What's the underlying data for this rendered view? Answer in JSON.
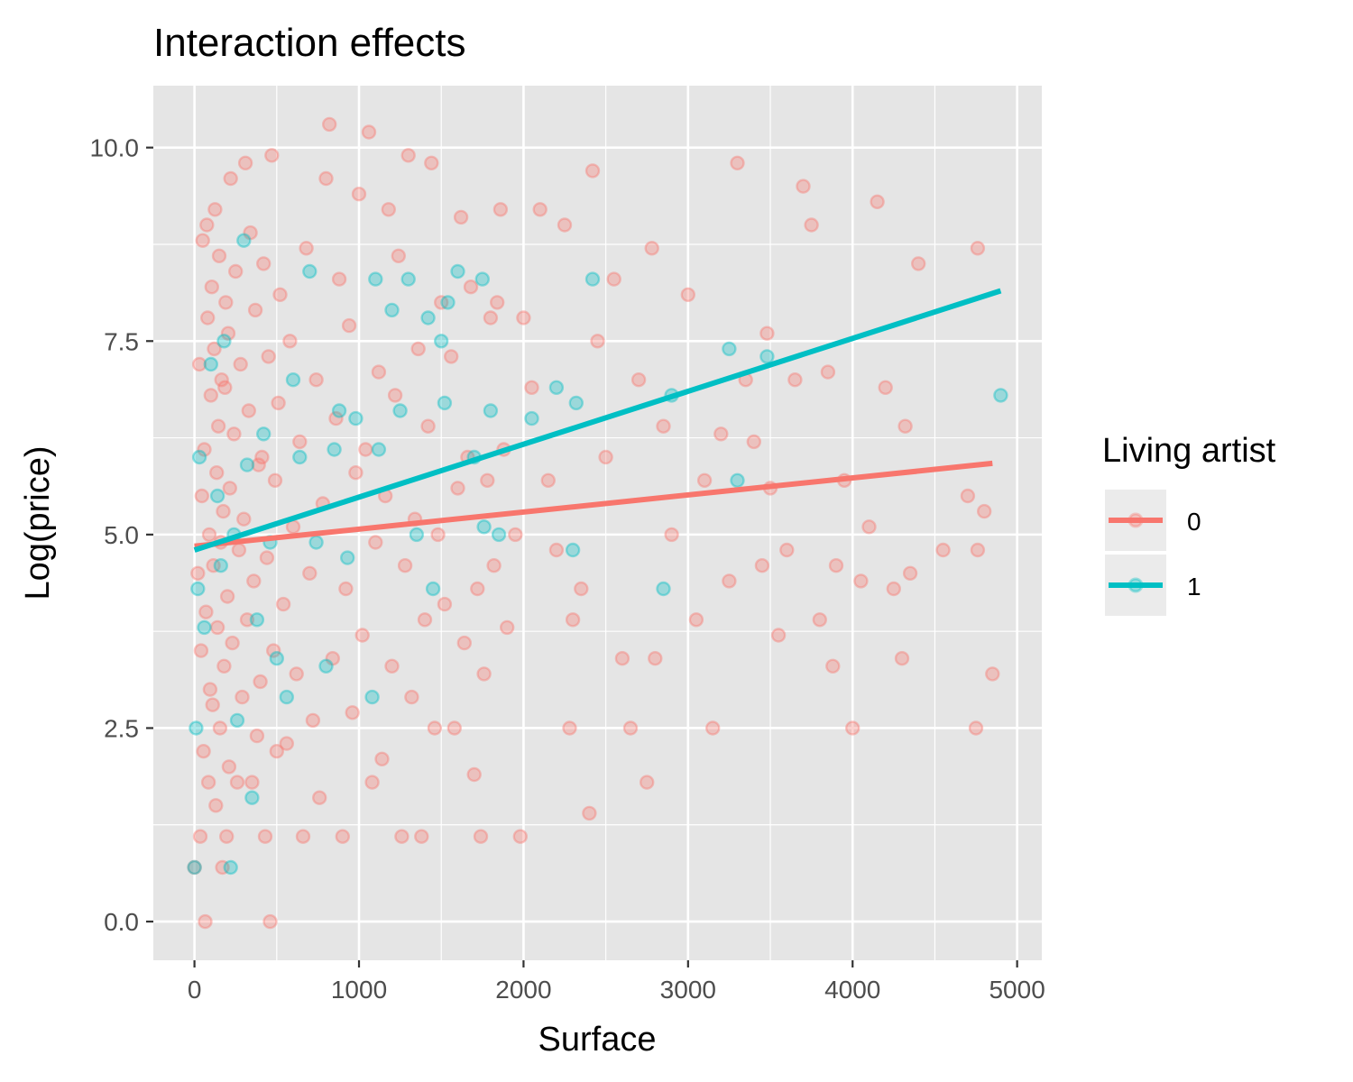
{
  "chart_data": {
    "type": "scatter",
    "title": "Interaction effects",
    "xlabel": "Surface",
    "ylabel": "Log(price)",
    "xlim": [
      -250,
      5150
    ],
    "ylim": [
      -0.5,
      10.8
    ],
    "x_ticks": [
      0,
      1000,
      2000,
      3000,
      4000,
      5000
    ],
    "x_tick_labels": [
      "0",
      "1000",
      "2000",
      "3000",
      "4000",
      "5000"
    ],
    "y_ticks": [
      0,
      2.5,
      5,
      7.5,
      10
    ],
    "y_tick_labels": [
      "0.0",
      "2.5",
      "5.0",
      "7.5",
      "10.0"
    ],
    "grid": true,
    "legend": {
      "title": "Living artist",
      "placement": "right",
      "entries": [
        "0",
        "1"
      ]
    },
    "colors": {
      "series_0": "#F8766D",
      "series_1": "#00BFC4",
      "panel_background": "#E5E5E5",
      "gridline": "#FFFFFF"
    },
    "series": [
      {
        "name": "0",
        "color": "#F8766D",
        "fit_line": {
          "x": [
            0,
            4850
          ],
          "y": [
            4.85,
            5.92
          ]
        },
        "points": [
          [
            0,
            0.7
          ],
          [
            20,
            4.5
          ],
          [
            30,
            7.2
          ],
          [
            35,
            1.1
          ],
          [
            40,
            3.5
          ],
          [
            45,
            5.5
          ],
          [
            50,
            8.8
          ],
          [
            55,
            2.2
          ],
          [
            60,
            6.1
          ],
          [
            65,
            0.0
          ],
          [
            70,
            4.0
          ],
          [
            75,
            9.0
          ],
          [
            80,
            7.8
          ],
          [
            85,
            1.8
          ],
          [
            90,
            5.0
          ],
          [
            95,
            3.0
          ],
          [
            100,
            6.8
          ],
          [
            105,
            8.2
          ],
          [
            110,
            2.8
          ],
          [
            115,
            4.6
          ],
          [
            120,
            7.4
          ],
          [
            125,
            9.2
          ],
          [
            130,
            1.5
          ],
          [
            135,
            5.8
          ],
          [
            140,
            3.8
          ],
          [
            145,
            6.4
          ],
          [
            150,
            8.6
          ],
          [
            155,
            2.5
          ],
          [
            160,
            4.9
          ],
          [
            165,
            7.0
          ],
          [
            170,
            0.7
          ],
          [
            175,
            5.3
          ],
          [
            180,
            3.3
          ],
          [
            185,
            6.9
          ],
          [
            190,
            8.0
          ],
          [
            195,
            1.1
          ],
          [
            200,
            4.2
          ],
          [
            205,
            7.6
          ],
          [
            210,
            2.0
          ],
          [
            215,
            5.6
          ],
          [
            220,
            9.6
          ],
          [
            230,
            3.6
          ],
          [
            240,
            6.3
          ],
          [
            250,
            8.4
          ],
          [
            260,
            1.8
          ],
          [
            270,
            4.8
          ],
          [
            280,
            7.2
          ],
          [
            290,
            2.9
          ],
          [
            300,
            5.2
          ],
          [
            310,
            9.8
          ],
          [
            320,
            3.9
          ],
          [
            330,
            6.6
          ],
          [
            340,
            8.9
          ],
          [
            350,
            1.8
          ],
          [
            360,
            4.4
          ],
          [
            370,
            7.9
          ],
          [
            380,
            2.4
          ],
          [
            390,
            5.9
          ],
          [
            400,
            3.1
          ],
          [
            410,
            6.0
          ],
          [
            420,
            8.5
          ],
          [
            430,
            1.1
          ],
          [
            440,
            4.7
          ],
          [
            450,
            7.3
          ],
          [
            460,
            0.0
          ],
          [
            470,
            9.9
          ],
          [
            480,
            3.5
          ],
          [
            490,
            5.7
          ],
          [
            500,
            2.2
          ],
          [
            510,
            6.7
          ],
          [
            520,
            8.1
          ],
          [
            540,
            4.1
          ],
          [
            560,
            2.3
          ],
          [
            580,
            7.5
          ],
          [
            600,
            5.1
          ],
          [
            620,
            3.2
          ],
          [
            640,
            6.2
          ],
          [
            660,
            1.1
          ],
          [
            680,
            8.7
          ],
          [
            700,
            4.5
          ],
          [
            720,
            2.6
          ],
          [
            740,
            7.0
          ],
          [
            760,
            1.6
          ],
          [
            780,
            5.4
          ],
          [
            800,
            9.6
          ],
          [
            820,
            10.3
          ],
          [
            840,
            3.4
          ],
          [
            860,
            6.5
          ],
          [
            880,
            8.3
          ],
          [
            900,
            1.1
          ],
          [
            920,
            4.3
          ],
          [
            940,
            7.7
          ],
          [
            960,
            2.7
          ],
          [
            980,
            5.8
          ],
          [
            1000,
            9.4
          ],
          [
            1020,
            3.7
          ],
          [
            1040,
            6.1
          ],
          [
            1060,
            10.2
          ],
          [
            1080,
            1.8
          ],
          [
            1100,
            4.9
          ],
          [
            1120,
            7.1
          ],
          [
            1140,
            2.1
          ],
          [
            1160,
            5.5
          ],
          [
            1180,
            9.2
          ],
          [
            1200,
            3.3
          ],
          [
            1220,
            6.8
          ],
          [
            1240,
            8.6
          ],
          [
            1260,
            1.1
          ],
          [
            1280,
            4.6
          ],
          [
            1300,
            9.9
          ],
          [
            1320,
            2.9
          ],
          [
            1340,
            5.2
          ],
          [
            1360,
            7.4
          ],
          [
            1380,
            1.1
          ],
          [
            1400,
            3.9
          ],
          [
            1420,
            6.4
          ],
          [
            1440,
            9.8
          ],
          [
            1460,
            2.5
          ],
          [
            1480,
            5.0
          ],
          [
            1500,
            8.0
          ],
          [
            1520,
            4.1
          ],
          [
            1560,
            7.3
          ],
          [
            1580,
            2.5
          ],
          [
            1600,
            5.6
          ],
          [
            1620,
            9.1
          ],
          [
            1640,
            3.6
          ],
          [
            1660,
            6.0
          ],
          [
            1680,
            8.2
          ],
          [
            1700,
            1.9
          ],
          [
            1720,
            4.3
          ],
          [
            1740,
            1.1
          ],
          [
            1760,
            3.2
          ],
          [
            1780,
            5.7
          ],
          [
            1800,
            7.8
          ],
          [
            1820,
            4.6
          ],
          [
            1840,
            8.0
          ],
          [
            1860,
            9.2
          ],
          [
            1880,
            6.1
          ],
          [
            1900,
            3.8
          ],
          [
            1950,
            5.0
          ],
          [
            1980,
            1.1
          ],
          [
            2000,
            7.8
          ],
          [
            2050,
            6.9
          ],
          [
            2100,
            9.2
          ],
          [
            2150,
            5.7
          ],
          [
            2200,
            4.8
          ],
          [
            2250,
            9.0
          ],
          [
            2280,
            2.5
          ],
          [
            2300,
            3.9
          ],
          [
            2350,
            4.3
          ],
          [
            2400,
            1.4
          ],
          [
            2420,
            9.7
          ],
          [
            2450,
            7.5
          ],
          [
            2500,
            6.0
          ],
          [
            2550,
            8.3
          ],
          [
            2600,
            3.4
          ],
          [
            2650,
            2.5
          ],
          [
            2700,
            7.0
          ],
          [
            2750,
            1.8
          ],
          [
            2780,
            8.7
          ],
          [
            2800,
            3.4
          ],
          [
            2850,
            6.4
          ],
          [
            2900,
            5.0
          ],
          [
            3000,
            8.1
          ],
          [
            3050,
            3.9
          ],
          [
            3100,
            5.7
          ],
          [
            3150,
            2.5
          ],
          [
            3200,
            6.3
          ],
          [
            3250,
            4.4
          ],
          [
            3300,
            9.8
          ],
          [
            3350,
            7.0
          ],
          [
            3400,
            6.2
          ],
          [
            3450,
            4.6
          ],
          [
            3480,
            7.6
          ],
          [
            3500,
            5.6
          ],
          [
            3550,
            3.7
          ],
          [
            3600,
            4.8
          ],
          [
            3650,
            7.0
          ],
          [
            3700,
            9.5
          ],
          [
            3750,
            9.0
          ],
          [
            3800,
            3.9
          ],
          [
            3850,
            7.1
          ],
          [
            3880,
            3.3
          ],
          [
            3900,
            4.6
          ],
          [
            3950,
            5.7
          ],
          [
            4000,
            2.5
          ],
          [
            4050,
            4.4
          ],
          [
            4100,
            5.1
          ],
          [
            4150,
            9.3
          ],
          [
            4200,
            6.9
          ],
          [
            4250,
            4.3
          ],
          [
            4300,
            3.4
          ],
          [
            4320,
            6.4
          ],
          [
            4350,
            4.5
          ],
          [
            4400,
            8.5
          ],
          [
            4550,
            4.8
          ],
          [
            4700,
            5.5
          ],
          [
            4750,
            2.5
          ],
          [
            4760,
            4.8
          ],
          [
            4760,
            8.7
          ],
          [
            4800,
            5.3
          ],
          [
            4850,
            3.2
          ]
        ]
      },
      {
        "name": "1",
        "color": "#00BFC4",
        "fit_line": {
          "x": [
            0,
            4900
          ],
          "y": [
            4.8,
            8.15
          ]
        },
        "points": [
          [
            0,
            0.7
          ],
          [
            10,
            2.5
          ],
          [
            20,
            4.3
          ],
          [
            30,
            6.0
          ],
          [
            60,
            3.8
          ],
          [
            100,
            7.2
          ],
          [
            140,
            5.5
          ],
          [
            160,
            4.6
          ],
          [
            180,
            7.5
          ],
          [
            220,
            0.7
          ],
          [
            240,
            5.0
          ],
          [
            260,
            2.6
          ],
          [
            300,
            8.8
          ],
          [
            320,
            5.9
          ],
          [
            350,
            1.6
          ],
          [
            380,
            3.9
          ],
          [
            420,
            6.3
          ],
          [
            460,
            4.9
          ],
          [
            500,
            3.4
          ],
          [
            560,
            2.9
          ],
          [
            600,
            7.0
          ],
          [
            640,
            6.0
          ],
          [
            700,
            8.4
          ],
          [
            740,
            4.9
          ],
          [
            800,
            3.3
          ],
          [
            850,
            6.1
          ],
          [
            880,
            6.6
          ],
          [
            930,
            4.7
          ],
          [
            980,
            6.5
          ],
          [
            1080,
            2.9
          ],
          [
            1100,
            8.3
          ],
          [
            1120,
            6.1
          ],
          [
            1200,
            7.9
          ],
          [
            1250,
            6.6
          ],
          [
            1300,
            8.3
          ],
          [
            1350,
            5.0
          ],
          [
            1420,
            7.8
          ],
          [
            1450,
            4.3
          ],
          [
            1500,
            7.5
          ],
          [
            1520,
            6.7
          ],
          [
            1540,
            8.0
          ],
          [
            1600,
            8.4
          ],
          [
            1700,
            6.0
          ],
          [
            1750,
            8.3
          ],
          [
            1760,
            5.1
          ],
          [
            1800,
            6.6
          ],
          [
            1850,
            5.0
          ],
          [
            2050,
            6.5
          ],
          [
            2200,
            6.9
          ],
          [
            2300,
            4.8
          ],
          [
            2320,
            6.7
          ],
          [
            2420,
            8.3
          ],
          [
            2850,
            4.3
          ],
          [
            2900,
            6.8
          ],
          [
            3250,
            7.4
          ],
          [
            3300,
            5.7
          ],
          [
            3480,
            7.3
          ],
          [
            4900,
            6.8
          ]
        ]
      }
    ]
  }
}
